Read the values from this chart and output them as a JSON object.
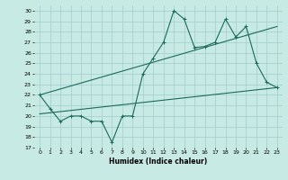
{
  "xlabel": "Humidex (Indice chaleur)",
  "xlim": [
    -0.5,
    23.5
  ],
  "ylim": [
    17,
    30.5
  ],
  "yticks": [
    17,
    18,
    19,
    20,
    21,
    22,
    23,
    24,
    25,
    26,
    27,
    28,
    29,
    30
  ],
  "xticks": [
    0,
    1,
    2,
    3,
    4,
    5,
    6,
    7,
    8,
    9,
    10,
    11,
    12,
    13,
    14,
    15,
    16,
    17,
    18,
    19,
    20,
    21,
    22,
    23
  ],
  "xtick_labels": [
    "0",
    "1",
    "2",
    "3",
    "4",
    "5",
    "6",
    "7",
    "8",
    "9",
    "10",
    "11",
    "12",
    "13",
    "14",
    "15",
    "16",
    "17",
    "18",
    "19",
    "20",
    "21",
    "22",
    "23"
  ],
  "bg_color": "#c8eae4",
  "grid_color": "#a0cccc",
  "line_color": "#1a6b5a",
  "line1_x": [
    0,
    1,
    2,
    3,
    4,
    5,
    6,
    7,
    8,
    9,
    10,
    11,
    12,
    13,
    14,
    15,
    16,
    17,
    18,
    19,
    20,
    21,
    22,
    23
  ],
  "line1_y": [
    22.0,
    20.7,
    19.5,
    20.0,
    20.0,
    19.5,
    19.5,
    17.5,
    20.0,
    20.0,
    24.0,
    25.5,
    27.0,
    30.0,
    29.2,
    26.5,
    26.6,
    27.0,
    29.2,
    27.5,
    28.5,
    25.0,
    23.2,
    22.7
  ],
  "line2_x": [
    0,
    23
  ],
  "line2_y": [
    20.2,
    22.7
  ],
  "line3_x": [
    0,
    23
  ],
  "line3_y": [
    22.0,
    28.5
  ]
}
